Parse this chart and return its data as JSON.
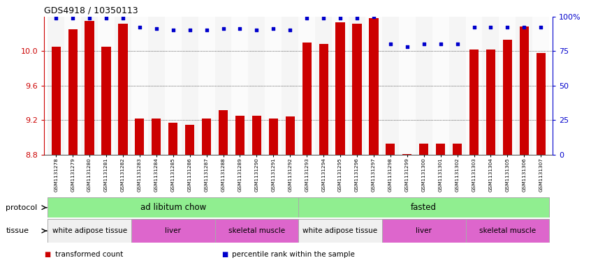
{
  "title": "GDS4918 / 10350113",
  "samples": [
    "GSM1131278",
    "GSM1131279",
    "GSM1131280",
    "GSM1131281",
    "GSM1131282",
    "GSM1131283",
    "GSM1131284",
    "GSM1131285",
    "GSM1131286",
    "GSM1131287",
    "GSM1131288",
    "GSM1131289",
    "GSM1131290",
    "GSM1131291",
    "GSM1131292",
    "GSM1131293",
    "GSM1131294",
    "GSM1131295",
    "GSM1131296",
    "GSM1131297",
    "GSM1131298",
    "GSM1131299",
    "GSM1131300",
    "GSM1131301",
    "GSM1131302",
    "GSM1131303",
    "GSM1131304",
    "GSM1131305",
    "GSM1131306",
    "GSM1131307"
  ],
  "red_values": [
    10.05,
    10.25,
    10.35,
    10.05,
    10.32,
    9.22,
    9.22,
    9.17,
    9.15,
    9.22,
    9.32,
    9.25,
    9.25,
    9.22,
    9.24,
    10.1,
    10.08,
    10.33,
    10.32,
    10.38,
    8.93,
    8.81,
    8.93,
    8.93,
    8.93,
    10.02,
    10.02,
    10.13,
    10.28,
    9.98
  ],
  "blue_values": [
    99,
    99,
    99,
    99,
    99,
    92,
    91,
    90,
    90,
    90,
    91,
    91,
    90,
    91,
    90,
    99,
    99,
    99,
    99,
    100,
    80,
    78,
    80,
    80,
    80,
    92,
    92,
    92,
    92,
    92
  ],
  "ylim_left": [
    8.8,
    10.4
  ],
  "ylim_right": [
    0,
    100
  ],
  "yticks_left": [
    8.8,
    9.2,
    9.6,
    10.0
  ],
  "yticks_right": [
    0,
    25,
    50,
    75,
    100
  ],
  "bar_color": "#cc0000",
  "dot_color": "#0000cc",
  "protocol_groups": [
    {
      "label": "ad libitum chow",
      "start": 0,
      "end": 14,
      "color": "#90ee90"
    },
    {
      "label": "fasted",
      "start": 15,
      "end": 29,
      "color": "#90ee90"
    }
  ],
  "tissue_groups": [
    {
      "label": "white adipose tissue",
      "start": 0,
      "end": 4,
      "color": "#ffffff"
    },
    {
      "label": "liver",
      "start": 5,
      "end": 9,
      "color": "#dd66cc"
    },
    {
      "label": "skeletal muscle",
      "start": 10,
      "end": 14,
      "color": "#dd66cc"
    },
    {
      "label": "white adipose tissue",
      "start": 15,
      "end": 19,
      "color": "#ffffff"
    },
    {
      "label": "liver",
      "start": 20,
      "end": 24,
      "color": "#dd66cc"
    },
    {
      "label": "skeletal muscle",
      "start": 25,
      "end": 29,
      "color": "#dd66cc"
    }
  ],
  "legend_items": [
    {
      "label": "transformed count",
      "color": "#cc0000"
    },
    {
      "label": "percentile rank within the sample",
      "color": "#0000cc"
    }
  ]
}
